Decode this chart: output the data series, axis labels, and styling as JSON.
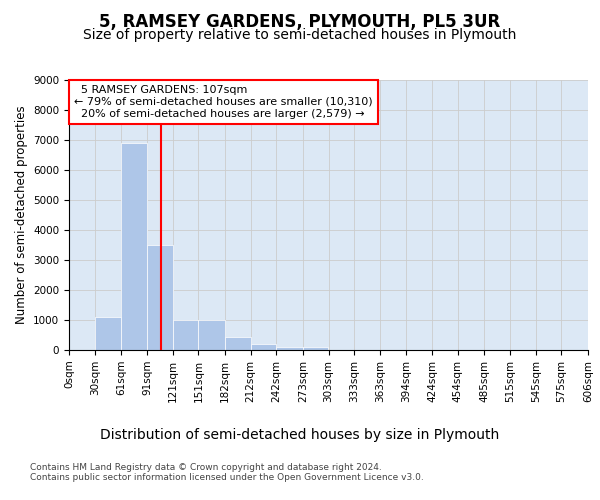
{
  "title": "5, RAMSEY GARDENS, PLYMOUTH, PL5 3UR",
  "subtitle": "Size of property relative to semi-detached houses in Plymouth",
  "xlabel": "Distribution of semi-detached houses by size in Plymouth",
  "ylabel": "Number of semi-detached properties",
  "property_label": "5 RAMSEY GARDENS: 107sqm",
  "pct_smaller": 79,
  "count_smaller": 10310,
  "pct_larger": 20,
  "count_larger": 2579,
  "bin_edges": [
    0,
    30,
    61,
    91,
    121,
    151,
    182,
    212,
    242,
    273,
    303,
    333,
    363,
    394,
    424,
    454,
    485,
    515,
    545,
    575,
    606
  ],
  "bar_heights": [
    0,
    1100,
    6900,
    3500,
    1000,
    1000,
    450,
    200,
    100,
    100,
    0,
    0,
    0,
    0,
    0,
    0,
    0,
    0,
    0,
    0
  ],
  "bar_color": "#aec6e8",
  "bar_edge_color": "#aec6e8",
  "vline_color": "red",
  "vline_x": 107,
  "grid_color": "#cccccc",
  "background_color": "#dce8f5",
  "ylim": [
    0,
    9000
  ],
  "yticks": [
    0,
    1000,
    2000,
    3000,
    4000,
    5000,
    6000,
    7000,
    8000,
    9000
  ],
  "tick_labels": [
    "0sqm",
    "30sqm",
    "61sqm",
    "91sqm",
    "121sqm",
    "151sqm",
    "182sqm",
    "212sqm",
    "242sqm",
    "273sqm",
    "303sqm",
    "333sqm",
    "363sqm",
    "394sqm",
    "424sqm",
    "454sqm",
    "485sqm",
    "515sqm",
    "545sqm",
    "575sqm",
    "606sqm"
  ],
  "footer_text": "Contains HM Land Registry data © Crown copyright and database right 2024.\nContains public sector information licensed under the Open Government Licence v3.0.",
  "title_fontsize": 12,
  "subtitle_fontsize": 10,
  "xlabel_fontsize": 10,
  "ylabel_fontsize": 8.5,
  "tick_fontsize": 7.5,
  "annotation_fontsize": 8
}
